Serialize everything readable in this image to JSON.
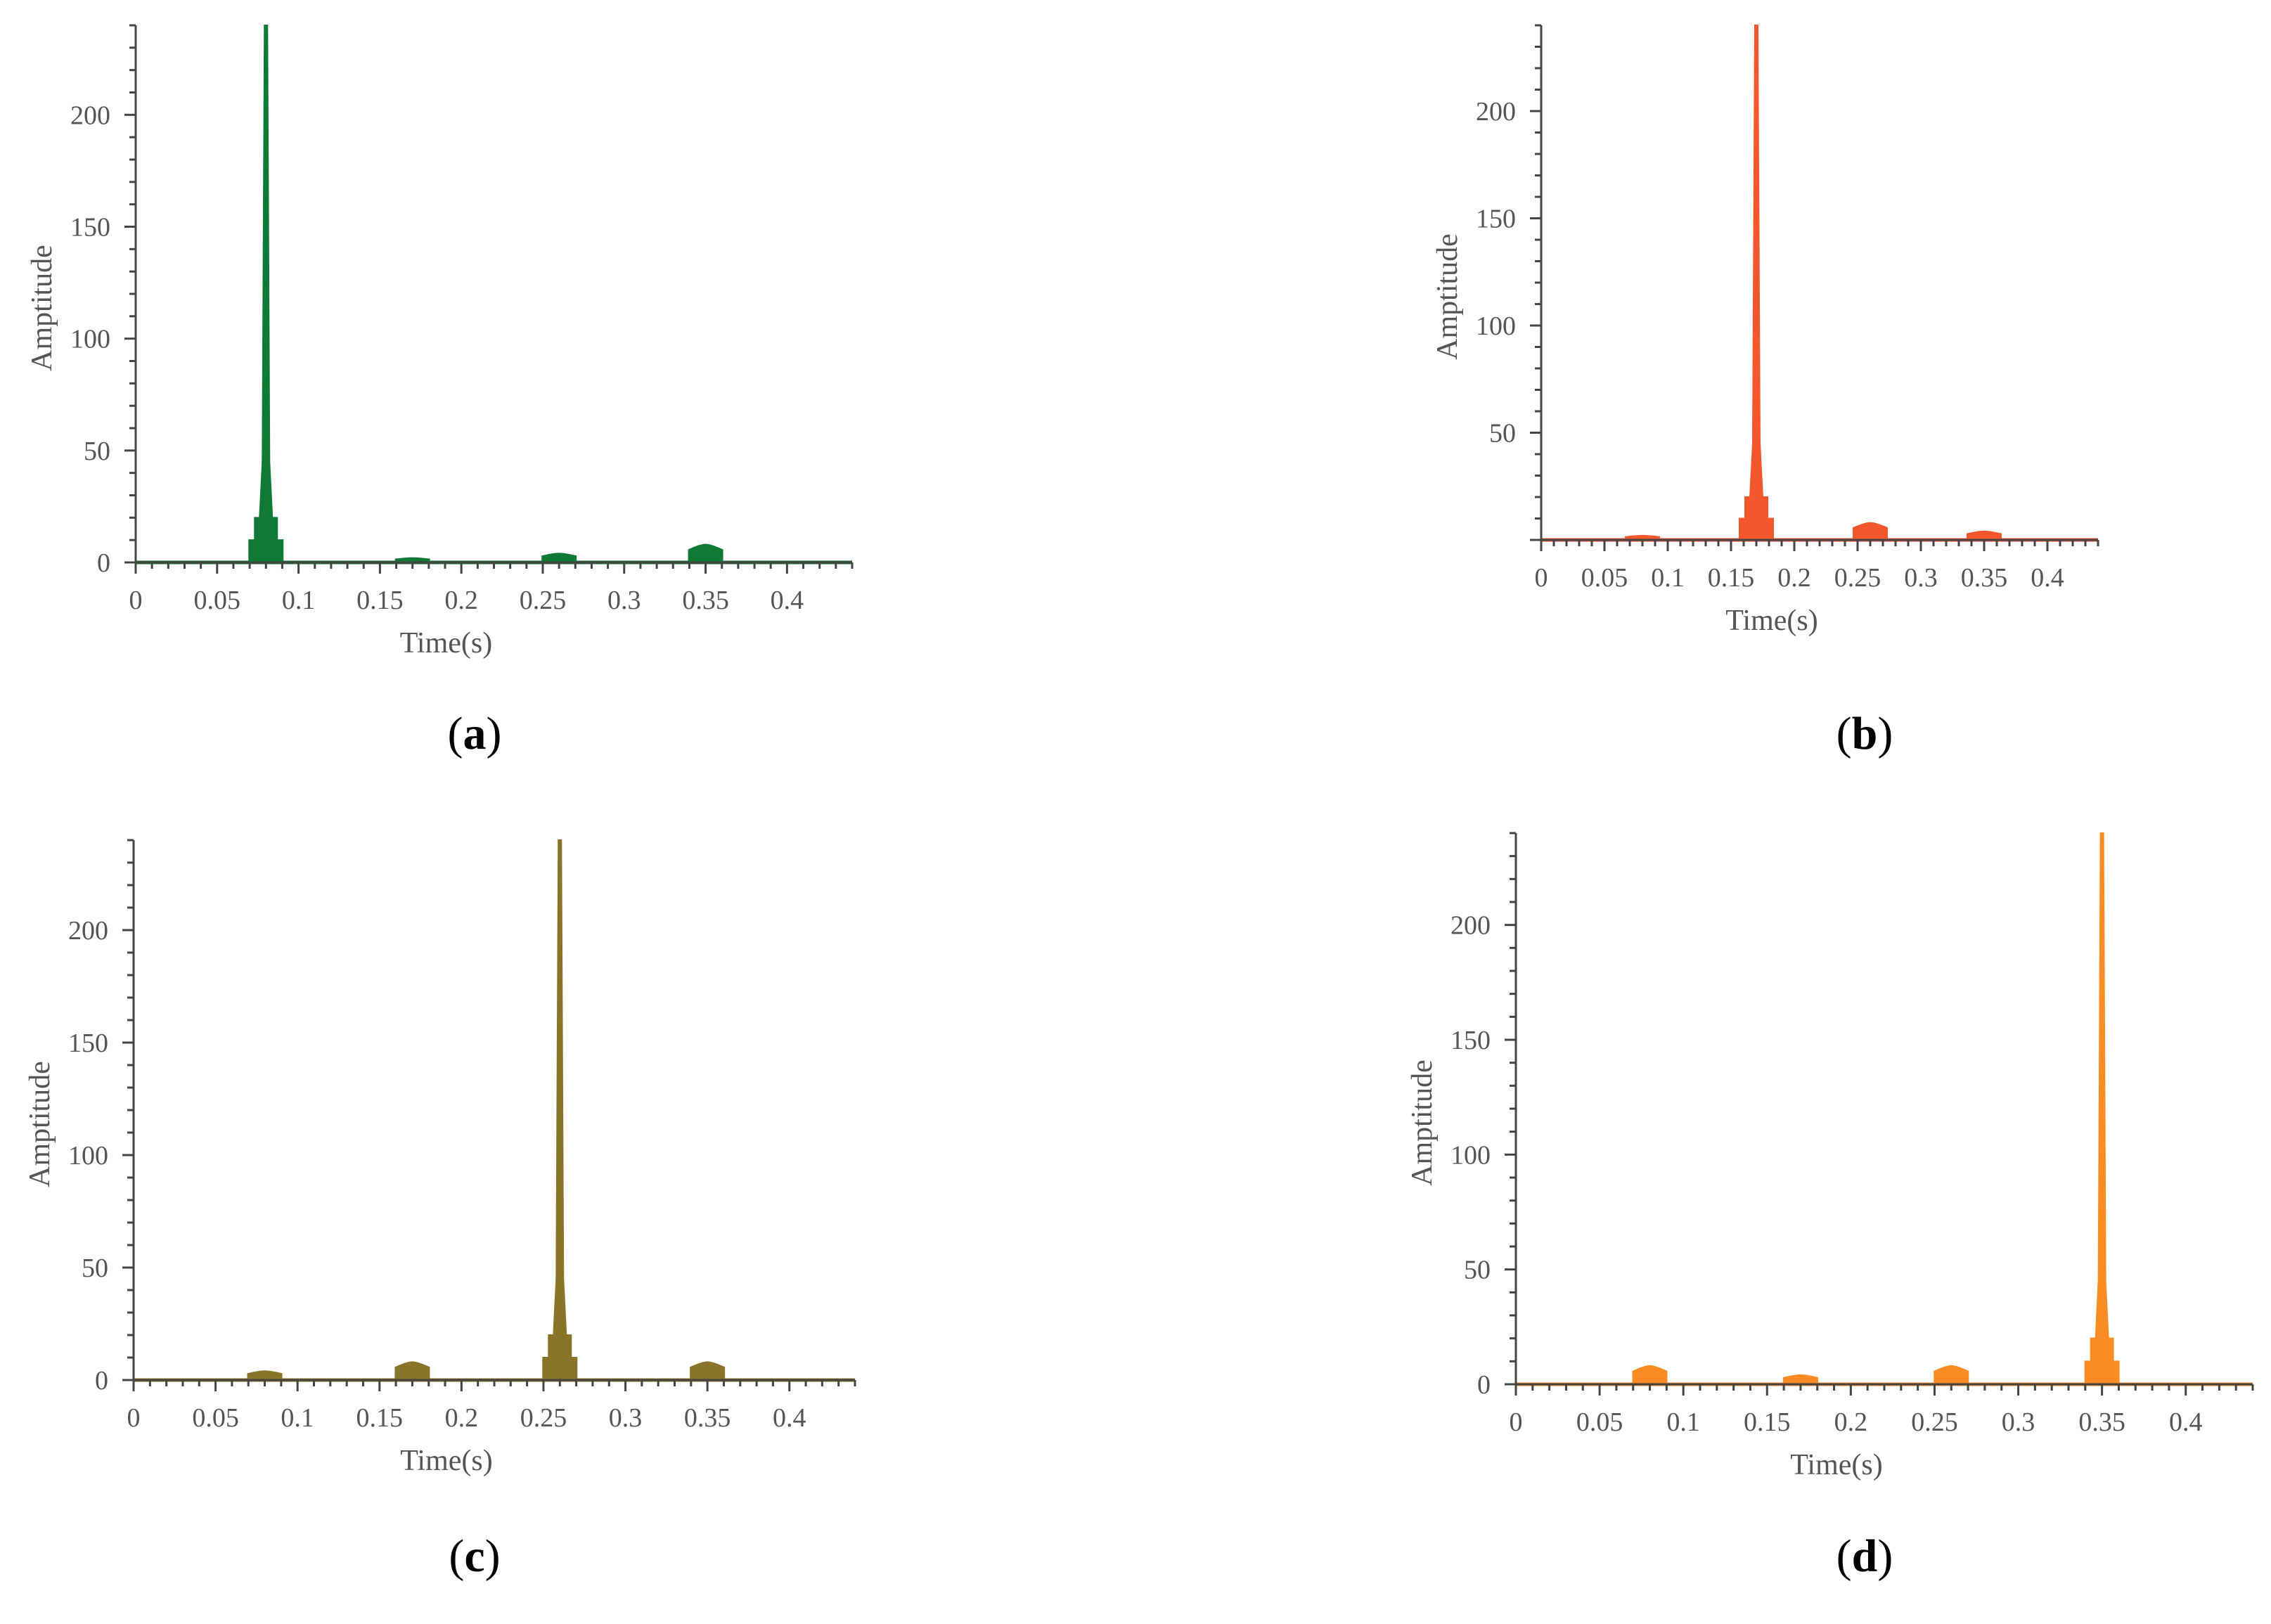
{
  "chart_data": [
    {
      "type": "line",
      "panel_label": "a",
      "color": "#0e7a35",
      "xlabel": "Time(s)",
      "ylabel": "Amptitude",
      "xlim": [
        0,
        0.44
      ],
      "ylim": [
        0,
        240
      ],
      "xticks": [
        0,
        0.05,
        0.1,
        0.15,
        0.2,
        0.25,
        0.3,
        0.35,
        0.4
      ],
      "xtick_labels": [
        "0",
        "0.05",
        "0.1",
        "0.15",
        "0.2",
        "0.25",
        "0.3",
        "0.35",
        "0.4"
      ],
      "yticks": [
        0,
        50,
        100,
        150,
        200
      ],
      "ytick_labels": [
        "0",
        "50",
        "100",
        "150",
        "200"
      ],
      "series": [
        {
          "peaks": [
            {
              "x": 0.08,
              "y": 240
            },
            {
              "x": 0.17,
              "y": 2
            },
            {
              "x": 0.26,
              "y": 4
            },
            {
              "x": 0.35,
              "y": 8
            }
          ]
        }
      ]
    },
    {
      "type": "line",
      "panel_label": "b",
      "color": "#f4572c",
      "xlabel": "Time(s)",
      "ylabel": "Amptitude",
      "xlim": [
        0,
        0.44
      ],
      "ylim": [
        0,
        240
      ],
      "xticks": [
        0,
        0.05,
        0.1,
        0.15,
        0.2,
        0.25,
        0.3,
        0.35,
        0.4
      ],
      "xtick_labels": [
        "0",
        "0.05",
        "0.1",
        "0.15",
        "0.2",
        "0.25",
        "0.3",
        "0.35",
        "0.4"
      ],
      "yticks": [
        50,
        100,
        150,
        200
      ],
      "ytick_labels": [
        "50",
        "100",
        "150",
        "200"
      ],
      "series": [
        {
          "peaks": [
            {
              "x": 0.08,
              "y": 2
            },
            {
              "x": 0.17,
              "y": 240
            },
            {
              "x": 0.26,
              "y": 8
            },
            {
              "x": 0.35,
              "y": 4
            }
          ]
        }
      ]
    },
    {
      "type": "line",
      "panel_label": "c",
      "color": "#8a742a",
      "xlabel": "Time(s)",
      "ylabel": "Amptitude",
      "xlim": [
        0,
        0.44
      ],
      "ylim": [
        0,
        240
      ],
      "xticks": [
        0,
        0.05,
        0.1,
        0.15,
        0.2,
        0.25,
        0.3,
        0.35,
        0.4
      ],
      "xtick_labels": [
        "0",
        "0.05",
        "0.1",
        "0.15",
        "0.2",
        "0.25",
        "0.3",
        "0.35",
        "0.4"
      ],
      "yticks": [
        0,
        50,
        100,
        150,
        200
      ],
      "ytick_labels": [
        "0",
        "50",
        "100",
        "150",
        "200"
      ],
      "series": [
        {
          "peaks": [
            {
              "x": 0.08,
              "y": 4
            },
            {
              "x": 0.17,
              "y": 8
            },
            {
              "x": 0.26,
              "y": 240
            },
            {
              "x": 0.35,
              "y": 8
            }
          ]
        }
      ]
    },
    {
      "type": "line",
      "panel_label": "d",
      "color": "#fb8c24",
      "xlabel": "Time(s)",
      "ylabel": "Amptitude",
      "xlim": [
        0,
        0.44
      ],
      "ylim": [
        0,
        240
      ],
      "xticks": [
        0,
        0.05,
        0.1,
        0.15,
        0.2,
        0.25,
        0.3,
        0.35,
        0.4
      ],
      "xtick_labels": [
        "0",
        "0.05",
        "0.1",
        "0.15",
        "0.2",
        "0.25",
        "0.3",
        "0.35",
        "0.4"
      ],
      "yticks": [
        0,
        50,
        100,
        150,
        200
      ],
      "ytick_labels": [
        "0",
        "50",
        "100",
        "150",
        "200"
      ],
      "series": [
        {
          "peaks": [
            {
              "x": 0.08,
              "y": 8
            },
            {
              "x": 0.17,
              "y": 4
            },
            {
              "x": 0.26,
              "y": 8
            },
            {
              "x": 0.35,
              "y": 240
            }
          ]
        }
      ]
    }
  ]
}
